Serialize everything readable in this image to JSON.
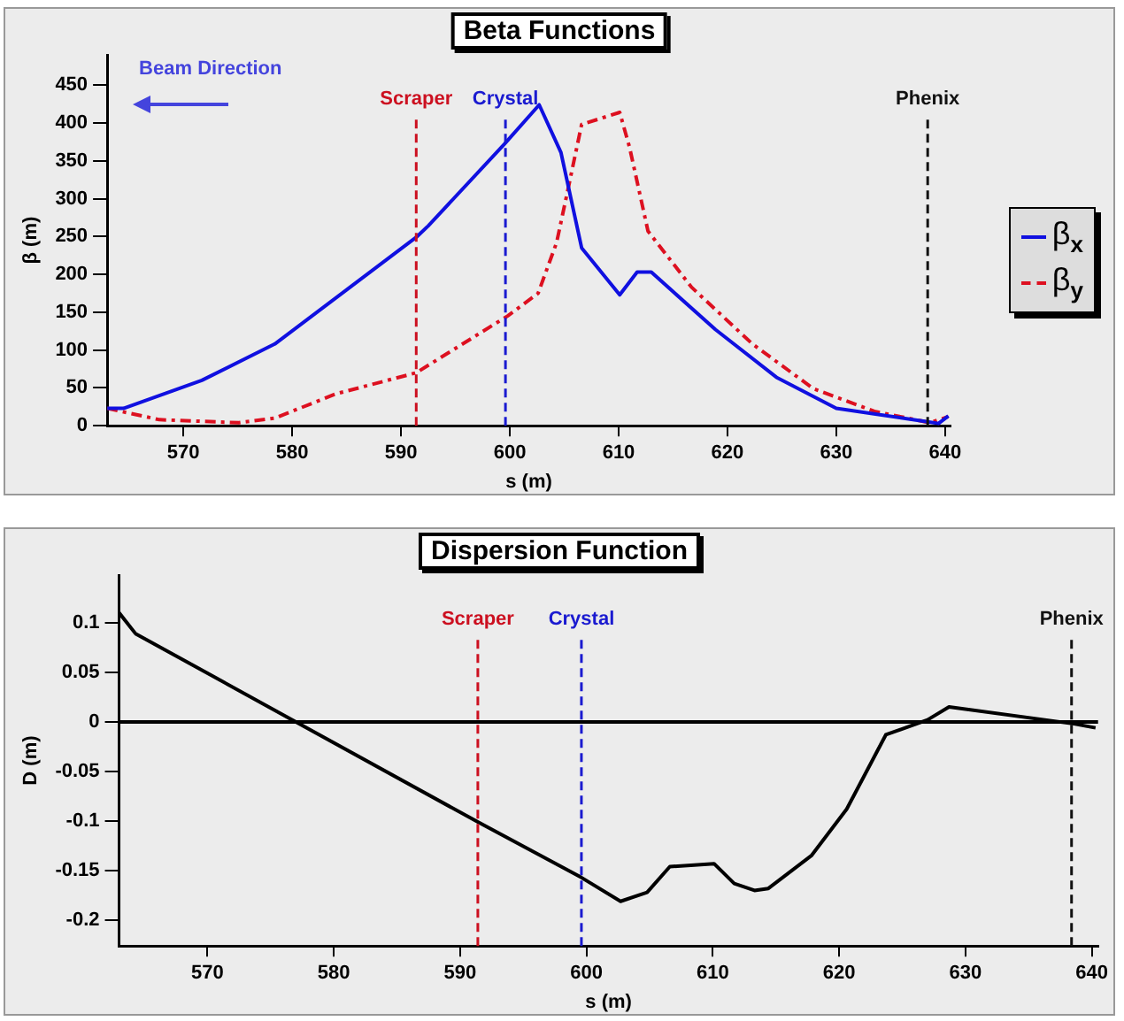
{
  "chart_data": [
    {
      "type": "line",
      "title": "Beta Functions",
      "xlabel": "s (m)",
      "ylabel": "β (m)",
      "xlim": [
        563,
        640.5
      ],
      "xticks": [
        570,
        580,
        590,
        600,
        610,
        620,
        630,
        640
      ],
      "ylim": [
        0,
        490
      ],
      "yticks": [
        0,
        50,
        100,
        150,
        200,
        250,
        300,
        350,
        400,
        450
      ],
      "grid": false,
      "legend": "right",
      "marker": "none",
      "series": [
        {
          "name": "β$_{x}$",
          "color": "#1010e0",
          "line_style": "solid",
          "x": [
            563,
            564.5,
            571.7,
            578.4,
            591.4,
            592.5,
            599.5,
            602.7,
            604.7,
            606.6,
            610.1,
            611.7,
            613,
            618.9,
            624.5,
            630,
            638,
            639.4,
            640.3
          ],
          "values": [
            23,
            23,
            60,
            108,
            249,
            264,
            372,
            424,
            361,
            235,
            173,
            203,
            203,
            127,
            64,
            23,
            6,
            3,
            13
          ]
        },
        {
          "name": "β$_{y}$",
          "color": "#dd1020",
          "line_style": "dashed",
          "x": [
            563,
            567.8,
            575.1,
            578.4,
            584,
            591.4,
            599.8,
            602.6,
            604.3,
            605.4,
            606.6,
            610.1,
            611,
            612.7,
            616.7,
            622.3,
            627.9,
            633.5,
            638.6,
            640.3
          ],
          "values": [
            23,
            8,
            4,
            10,
            42,
            70,
            145,
            175,
            242,
            316,
            398,
            414,
            368,
            257,
            183,
            108,
            49,
            19,
            4,
            12
          ]
        }
      ],
      "ref_lines": [
        {
          "axis": "x",
          "value": 591.4,
          "label": "Scraper",
          "color": "#cc1020",
          "line_style": "dashed"
        },
        {
          "axis": "x",
          "value": 599.6,
          "label": "Crystal",
          "color": "#1a1ad0",
          "line_style": "dashed"
        },
        {
          "axis": "x",
          "value": 638.4,
          "label": "Phenix",
          "color": "#111111",
          "line_style": "dashed"
        }
      ],
      "annotations": [
        "Beam Direction"
      ]
    },
    {
      "type": "line",
      "title": "Dispersion Function",
      "xlabel": "s (m)",
      "ylabel": "D (m)",
      "xlim": [
        563,
        640.5
      ],
      "xticks": [
        570,
        580,
        590,
        600,
        610,
        620,
        630,
        640
      ],
      "ylim": [
        -0.226,
        0.148
      ],
      "yticks": [
        0.1,
        0.05,
        0,
        -0.05,
        -0.1,
        -0.15,
        -0.2
      ],
      "grid": false,
      "legend": false,
      "marker": "none",
      "series": [
        {
          "color": "#000000",
          "line_style": "solid",
          "x": [
            563,
            564.3,
            577,
            591.4,
            599.6,
            602.7,
            604.8,
            606.6,
            610.1,
            611.7,
            613.3,
            614.4,
            617.8,
            620.6,
            623.7,
            627,
            628.7,
            638.6,
            640.3
          ],
          "values": [
            0.11,
            0.089,
            0,
            -0.101,
            -0.157,
            -0.181,
            -0.172,
            -0.146,
            -0.143,
            -0.163,
            -0.17,
            -0.168,
            -0.135,
            -0.088,
            -0.013,
            0.002,
            0.015,
            -0.002,
            -0.006
          ]
        }
      ],
      "ref_lines": [
        {
          "axis": "x",
          "value": 591.4,
          "label": "Scraper",
          "color": "#cc1020",
          "line_style": "dashed"
        },
        {
          "axis": "x",
          "value": 599.6,
          "label": "Crystal",
          "color": "#1a1ad0",
          "line_style": "dashed"
        },
        {
          "axis": "x",
          "value": 638.4,
          "label": "Phenix",
          "color": "#111111",
          "line_style": "dashed"
        },
        {
          "axis": "y",
          "value": 0,
          "color": "#000000",
          "line_style": "solid"
        }
      ]
    }
  ]
}
